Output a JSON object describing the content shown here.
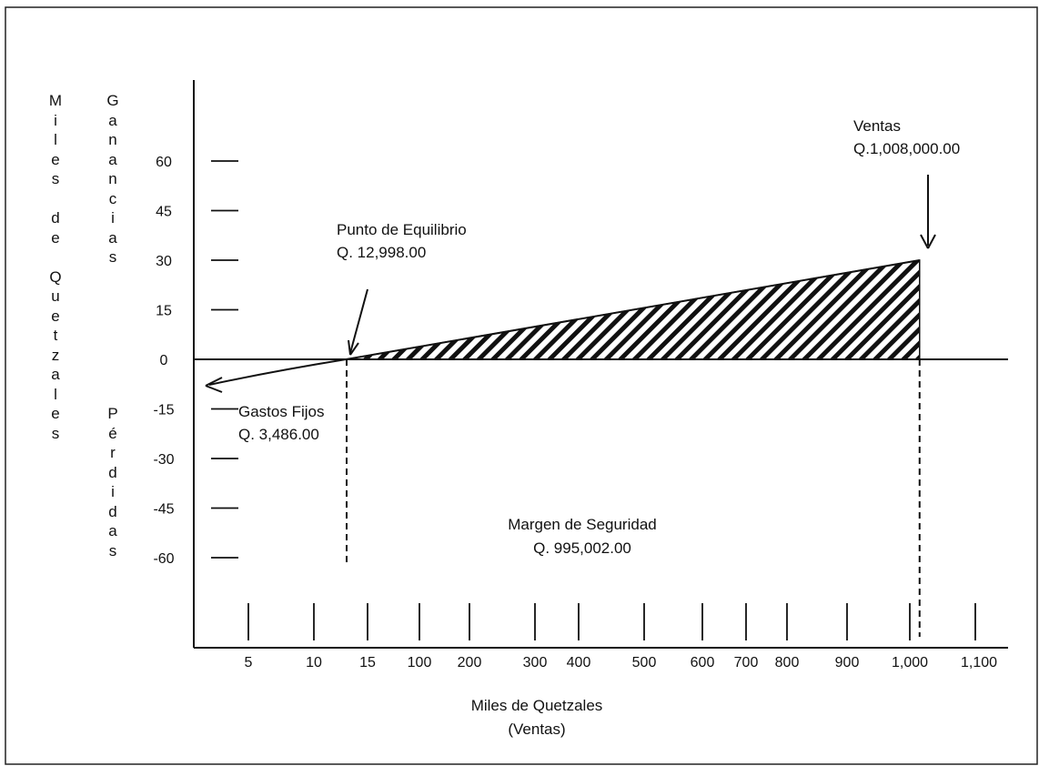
{
  "chart_data": {
    "type": "line",
    "title": "",
    "ylabel_left": "Miles de Quetzales",
    "ylabel_upper": "Ganancias",
    "ylabel_lower": "Pérdidas",
    "xlabel_line1": "Miles de Quetzales",
    "xlabel_line2": "(Ventas)",
    "y_ticks": [
      60,
      45,
      30,
      15,
      0,
      -15,
      -30,
      -45,
      -60
    ],
    "ylim": [
      -70,
      75
    ],
    "x_tick_labels": [
      "5",
      "10",
      "15",
      "100",
      "200",
      "300",
      "400",
      "500",
      "600",
      "700",
      "800",
      "900",
      "1,000",
      "1,100"
    ],
    "x_scale": "non-uniform categorical",
    "series": [
      {
        "points": [
          {
            "x_thousands": 0,
            "y_thousands": -3.486
          },
          {
            "x_thousands": 12.998,
            "y_thousands": 0
          },
          {
            "x_thousands": 1008,
            "y_thousands": 30
          }
        ]
      }
    ],
    "shaded_region": {
      "from_x": 12.998,
      "to_x": 1008,
      "pattern": "diagonal-hatch"
    },
    "annotations": {
      "ventas": {
        "line1": "Ventas",
        "line2": "Q.1,008,000.00"
      },
      "punto_equilibrio": {
        "line1": "Punto de Equilibrio",
        "line2": "Q. 12,998.00"
      },
      "gastos_fijos": {
        "line1": "Gastos Fijos",
        "line2": "Q. 3,486.00"
      },
      "margen_seguridad": {
        "line1": "Margen de Seguridad",
        "line2": "Q. 995,002.00"
      }
    },
    "colors": {
      "ink": "#111111",
      "background": "#ffffff"
    }
  }
}
